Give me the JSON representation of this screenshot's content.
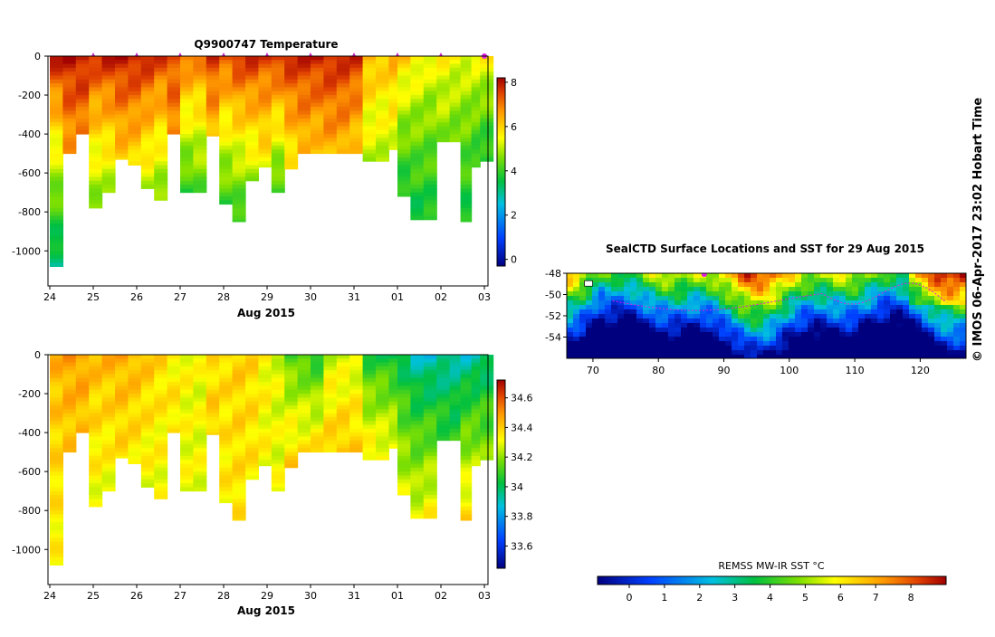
{
  "credit": "© IMOS 06-Apr-2017 23:02 Hobart Time",
  "chart_data": [
    {
      "type": "heatmap",
      "title": "Q9900747  Temperature",
      "xlabel": "Aug 2015",
      "x_ticks": [
        "24",
        "25",
        "26",
        "27",
        "28",
        "29",
        "30",
        "31",
        "01",
        "02",
        "03"
      ],
      "y_ticks": [
        "0",
        "-200",
        "-400",
        "-600",
        "-800",
        "-1000"
      ],
      "ylim": [
        -1180,
        0
      ],
      "colorbar_ticks": [
        "8",
        "6",
        "4",
        "2",
        "0"
      ],
      "colorbar_range": [
        -0.3,
        8.2
      ],
      "profiles": [
        {
          "x": 0.0,
          "depth": 1080,
          "surface": 8.0,
          "deep": 3.0
        },
        {
          "x": 0.3,
          "depth": 500,
          "surface": 8.0,
          "deep": 6.5
        },
        {
          "x": 0.6,
          "depth": 400,
          "surface": 8.0,
          "deep": 6.8
        },
        {
          "x": 0.9,
          "depth": 780,
          "surface": 7.8,
          "deep": 4.5
        },
        {
          "x": 1.2,
          "depth": 700,
          "surface": 7.9,
          "deep": 4.8
        },
        {
          "x": 1.5,
          "depth": 530,
          "surface": 8.0,
          "deep": 6.0
        },
        {
          "x": 1.8,
          "depth": 560,
          "surface": 8.0,
          "deep": 5.8
        },
        {
          "x": 2.1,
          "depth": 680,
          "surface": 7.9,
          "deep": 5.0
        },
        {
          "x": 2.4,
          "depth": 740,
          "surface": 7.6,
          "deep": 4.5
        },
        {
          "x": 2.7,
          "depth": 400,
          "surface": 7.4,
          "deep": 6.8
        },
        {
          "x": 3.0,
          "depth": 700,
          "surface": 7.2,
          "deep": 3.9
        },
        {
          "x": 3.3,
          "depth": 700,
          "surface": 7.0,
          "deep": 4.2
        },
        {
          "x": 3.6,
          "depth": 410,
          "surface": 7.6,
          "deep": 6.2
        },
        {
          "x": 3.9,
          "depth": 760,
          "surface": 7.4,
          "deep": 4.0
        },
        {
          "x": 4.2,
          "depth": 850,
          "surface": 7.8,
          "deep": 3.8
        },
        {
          "x": 4.5,
          "depth": 640,
          "surface": 7.8,
          "deep": 4.8
        },
        {
          "x": 4.8,
          "depth": 570,
          "surface": 7.5,
          "deep": 5.5
        },
        {
          "x": 5.1,
          "depth": 700,
          "surface": 7.8,
          "deep": 4.0
        },
        {
          "x": 5.4,
          "depth": 580,
          "surface": 7.9,
          "deep": 5.5
        },
        {
          "x": 5.7,
          "depth": 500,
          "surface": 7.8,
          "deep": 6.2
        },
        {
          "x": 6.0,
          "depth": 500,
          "surface": 7.9,
          "deep": 6.0
        },
        {
          "x": 6.3,
          "depth": 500,
          "surface": 7.9,
          "deep": 6.3
        },
        {
          "x": 6.6,
          "depth": 500,
          "surface": 7.8,
          "deep": 6.3
        },
        {
          "x": 6.9,
          "depth": 500,
          "surface": 7.7,
          "deep": 6.0
        },
        {
          "x": 7.2,
          "depth": 540,
          "surface": 6.4,
          "deep": 5.0
        },
        {
          "x": 7.5,
          "depth": 540,
          "surface": 6.2,
          "deep": 5.0
        },
        {
          "x": 7.8,
          "depth": 480,
          "surface": 6.4,
          "deep": 5.2
        },
        {
          "x": 8.0,
          "depth": 720,
          "surface": 6.1,
          "deep": 3.6
        },
        {
          "x": 8.3,
          "depth": 840,
          "surface": 5.8,
          "deep": 3.5
        },
        {
          "x": 8.6,
          "depth": 840,
          "surface": 5.5,
          "deep": 3.6
        },
        {
          "x": 8.9,
          "depth": 440,
          "surface": 5.6,
          "deep": 4.6
        },
        {
          "x": 9.2,
          "depth": 440,
          "surface": 5.5,
          "deep": 4.4
        },
        {
          "x": 9.45,
          "depth": 850,
          "surface": 5.4,
          "deep": 3.6
        },
        {
          "x": 9.7,
          "depth": 570,
          "surface": 5.5,
          "deep": 3.8
        },
        {
          "x": 9.9,
          "depth": 540,
          "surface": 5.6,
          "deep": 3.6
        }
      ]
    },
    {
      "type": "heatmap",
      "title": "",
      "xlabel": "Aug 2015",
      "x_ticks": [
        "24",
        "25",
        "26",
        "27",
        "28",
        "29",
        "30",
        "31",
        "01",
        "02",
        "03"
      ],
      "y_ticks": [
        "0",
        "-200",
        "-400",
        "-600",
        "-800",
        "-1000"
      ],
      "ylim": [
        -1180,
        0
      ],
      "colorbar_ticks": [
        "34.6",
        "34.4",
        "34.2",
        "34",
        "33.8",
        "33.6"
      ],
      "colorbar_range": [
        33.45,
        34.72
      ],
      "profiles": [
        {
          "x": 0.0,
          "depth": 1080,
          "surface": 34.45,
          "deep": 34.32
        },
        {
          "x": 0.3,
          "depth": 500,
          "surface": 34.48,
          "deep": 34.4
        },
        {
          "x": 0.6,
          "depth": 400,
          "surface": 34.48,
          "deep": 34.42
        },
        {
          "x": 0.9,
          "depth": 780,
          "surface": 34.44,
          "deep": 34.3
        },
        {
          "x": 1.2,
          "depth": 700,
          "surface": 34.45,
          "deep": 34.3
        },
        {
          "x": 1.5,
          "depth": 530,
          "surface": 34.46,
          "deep": 34.36
        },
        {
          "x": 1.8,
          "depth": 560,
          "surface": 34.45,
          "deep": 34.34
        },
        {
          "x": 2.1,
          "depth": 680,
          "surface": 34.42,
          "deep": 34.3
        },
        {
          "x": 2.4,
          "depth": 740,
          "surface": 34.38,
          "deep": 34.3
        },
        {
          "x": 2.7,
          "depth": 400,
          "surface": 34.33,
          "deep": 34.36
        },
        {
          "x": 3.0,
          "depth": 700,
          "surface": 34.32,
          "deep": 34.3
        },
        {
          "x": 3.3,
          "depth": 700,
          "surface": 34.3,
          "deep": 34.3
        },
        {
          "x": 3.6,
          "depth": 410,
          "surface": 34.36,
          "deep": 34.4
        },
        {
          "x": 3.9,
          "depth": 760,
          "surface": 34.38,
          "deep": 34.34
        },
        {
          "x": 4.2,
          "depth": 850,
          "surface": 34.4,
          "deep": 34.35
        },
        {
          "x": 4.5,
          "depth": 640,
          "surface": 34.38,
          "deep": 34.35
        },
        {
          "x": 4.8,
          "depth": 570,
          "surface": 34.32,
          "deep": 34.32
        },
        {
          "x": 5.1,
          "depth": 700,
          "surface": 34.28,
          "deep": 34.3
        },
        {
          "x": 5.4,
          "depth": 580,
          "surface": 34.12,
          "deep": 34.4
        },
        {
          "x": 5.7,
          "depth": 500,
          "surface": 34.1,
          "deep": 34.36
        },
        {
          "x": 6.0,
          "depth": 500,
          "surface": 34.05,
          "deep": 34.38
        },
        {
          "x": 6.3,
          "depth": 500,
          "surface": 34.26,
          "deep": 34.4
        },
        {
          "x": 6.6,
          "depth": 500,
          "surface": 34.26,
          "deep": 34.42
        },
        {
          "x": 6.9,
          "depth": 500,
          "surface": 34.26,
          "deep": 34.4
        },
        {
          "x": 7.2,
          "depth": 540,
          "surface": 34.05,
          "deep": 34.36
        },
        {
          "x": 7.5,
          "depth": 540,
          "surface": 34.05,
          "deep": 34.34
        },
        {
          "x": 7.8,
          "depth": 480,
          "surface": 34.0,
          "deep": 34.32
        },
        {
          "x": 8.0,
          "depth": 720,
          "surface": 33.98,
          "deep": 34.28
        },
        {
          "x": 8.3,
          "depth": 840,
          "surface": 33.9,
          "deep": 34.3
        },
        {
          "x": 8.6,
          "depth": 840,
          "surface": 33.88,
          "deep": 34.34
        },
        {
          "x": 8.9,
          "depth": 440,
          "surface": 33.92,
          "deep": 34.1
        },
        {
          "x": 9.2,
          "depth": 440,
          "surface": 33.92,
          "deep": 34.08
        },
        {
          "x": 9.45,
          "depth": 850,
          "surface": 33.9,
          "deep": 34.38
        },
        {
          "x": 9.7,
          "depth": 570,
          "surface": 33.92,
          "deep": 34.24
        },
        {
          "x": 9.9,
          "depth": 540,
          "surface": 33.95,
          "deep": 34.2
        }
      ]
    },
    {
      "type": "heatmap",
      "title": "SealCTD Surface Locations and SST for 29 Aug 2015",
      "x_ticks": [
        "70",
        "80",
        "90",
        "100",
        "110",
        "120"
      ],
      "y_ticks": [
        "-48",
        "-50",
        "-52",
        "-54"
      ],
      "xlim": [
        66,
        127
      ],
      "ylim": [
        -56,
        -48
      ],
      "colorbar_label": "REMSS MW-IR SST °C",
      "colorbar_ticks": [
        "0",
        "1",
        "2",
        "3",
        "4",
        "5",
        "6",
        "7",
        "8"
      ],
      "colorbar_range": [
        -0.9,
        9.0
      ],
      "track_color": "#e020e0"
    }
  ]
}
